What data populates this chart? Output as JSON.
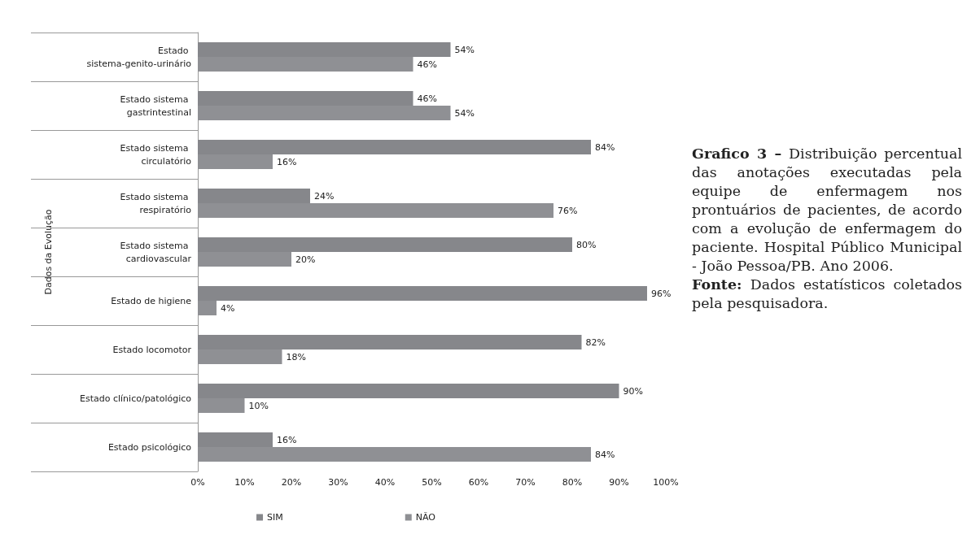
{
  "chart_data": {
    "type": "bar",
    "orientation": "horizontal",
    "ylabel": "Dados da Evolução",
    "categories": [
      "Estado sistema-genito-urinário",
      "Estado sistema gastrintestinal",
      "Estado sistema circulatório",
      "Estado sistema respiratório",
      "Estado sistema cardiovascular",
      "Estado de higiene",
      "Estado locomotor",
      "Estado clínico/patológico",
      "Estado psicológico"
    ],
    "series": [
      {
        "name": "SIM",
        "color": "#86878b",
        "values": [
          54,
          46,
          84,
          24,
          80,
          96,
          82,
          90,
          16
        ],
        "value_labels": [
          "54%",
          "46%",
          "84%",
          "24%",
          "80%",
          "96%",
          "82%",
          "90%",
          "16%"
        ]
      },
      {
        "name": "NÃO",
        "color": "#8f9094",
        "values": [
          46,
          54,
          16,
          76,
          20,
          4,
          18,
          10,
          84
        ],
        "value_labels": [
          "46%",
          "54%",
          "16%",
          "76%",
          "20%",
          "4%",
          "18%",
          "10%",
          "84%"
        ]
      }
    ],
    "xlim": [
      0,
      100
    ],
    "xticks": [
      {
        "value": 0,
        "label": "0%"
      },
      {
        "value": 10,
        "label": "10%"
      },
      {
        "value": 20,
        "label": "20%"
      },
      {
        "value": 30,
        "label": "30%"
      },
      {
        "value": 40,
        "label": "40%"
      },
      {
        "value": 50,
        "label": "50%"
      },
      {
        "value": 60,
        "label": "60%"
      },
      {
        "value": 70,
        "label": "70%"
      },
      {
        "value": 80,
        "label": "80%"
      },
      {
        "value": 90,
        "label": "90%"
      },
      {
        "value": 100,
        "label": "100%"
      }
    ],
    "legend": "bottom",
    "annotations": [
      "Grafico 3 – Distribuição percentual das anotações executadas pela equipe de enfermagem nos prontuários de pacientes, de acordo com a evolução de enfermagem do paciente. Hospital Público Municipal - João Pessoa/PB. Ano 2006.",
      "Fonte: Dados estatísticos coletados pela pesquisadora."
    ]
  }
}
